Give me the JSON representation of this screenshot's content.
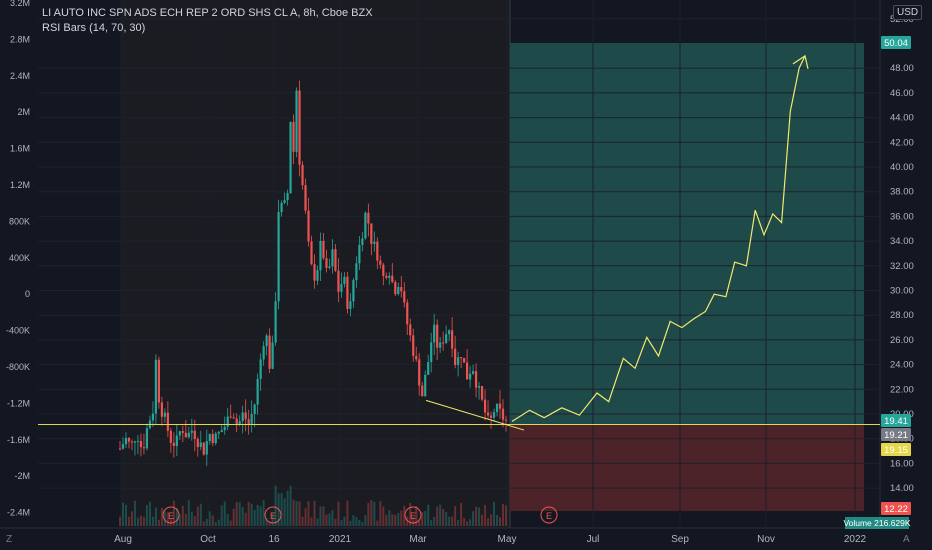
{
  "header": {
    "symbol_title": "LI AUTO INC SPN ADS ECH REP 2 ORD SHS CL A, 8h, Cboe BZX",
    "indicator": "RSI Bars (14, 70, 30)",
    "currency": "USD"
  },
  "bottom": {
    "left_icon": "Z",
    "right_icon": "A"
  },
  "colors": {
    "background": "#131722",
    "up": "#26a69a",
    "down": "#ef5350",
    "profit_zone": "#1f4a4a",
    "loss_zone": "#4b2328",
    "hline": "#e6d64a",
    "drawing": "#f0e96e"
  },
  "chart_data": {
    "type": "candlestick",
    "title": "LI AUTO INC SPN ADS ECH REP 2 ORD SHS CL A, 8h, Cboe BZX",
    "x_ticks": [
      "Aug",
      "Oct",
      "16",
      "2021",
      "Mar",
      "May",
      "Jul",
      "Sep",
      "Nov",
      "2022"
    ],
    "y_right_ticks": [
      "14.00",
      "16.00",
      "18.00",
      "20.00",
      "22.00",
      "24.00",
      "26.00",
      "28.00",
      "30.00",
      "32.00",
      "34.00",
      "36.00",
      "38.00",
      "40.00",
      "42.00",
      "44.00",
      "46.00",
      "48.00",
      "52.00"
    ],
    "y_right_range": [
      12.5,
      52.5
    ],
    "y_left_ticks": [
      "3.2M",
      "2.8M",
      "2.4M",
      "2M",
      "1.6M",
      "1.2M",
      "800K",
      "400K",
      "0",
      "-400K",
      "-800K",
      "-1.2M",
      "-1.6M",
      "-2M",
      "-2.4M"
    ],
    "price_labels": [
      {
        "text": "50.04",
        "value": 50.04,
        "color": "#26a69a"
      },
      {
        "text": "19.41",
        "value": 19.41,
        "color": "#26a69a"
      },
      {
        "text": "19.21",
        "value": 19.21,
        "color": "#787b86"
      },
      {
        "text": "19.15",
        "value": 19.15,
        "color": "#e6d64a"
      },
      {
        "text": "12.22",
        "value": 12.22,
        "color": "#ef5350"
      }
    ],
    "volume_label": "Volume 216.629K",
    "horizontal_line": 19.15,
    "earnings_markers": [
      "E",
      "E",
      "E",
      "E"
    ],
    "price_path": [
      [
        0,
        17.2
      ],
      [
        2,
        18.0
      ],
      [
        4,
        17.3
      ],
      [
        6,
        18.6
      ],
      [
        8,
        17.0
      ],
      [
        10,
        19.2
      ],
      [
        12,
        20.5
      ],
      [
        13,
        25.0
      ],
      [
        14,
        21.0
      ],
      [
        16,
        19.6
      ],
      [
        18,
        18.0
      ],
      [
        20,
        17.5
      ],
      [
        22,
        19.0
      ],
      [
        24,
        18.2
      ],
      [
        26,
        18.8
      ],
      [
        28,
        17.8
      ],
      [
        30,
        17.1
      ],
      [
        32,
        18.4
      ],
      [
        34,
        18.0
      ],
      [
        36,
        18.6
      ],
      [
        38,
        19.2
      ],
      [
        40,
        20.5
      ],
      [
        42,
        19.0
      ],
      [
        44,
        20.0
      ],
      [
        46,
        19.2
      ],
      [
        48,
        20.6
      ],
      [
        50,
        24.0
      ],
      [
        52,
        27.0
      ],
      [
        54,
        23.0
      ],
      [
        56,
        31.0
      ],
      [
        57,
        39.0
      ],
      [
        58,
        36.0
      ],
      [
        60,
        38.0
      ],
      [
        61,
        44.0
      ],
      [
        62,
        41.0
      ],
      [
        63,
        47.0
      ],
      [
        64,
        41.0
      ],
      [
        66,
        37.0
      ],
      [
        68,
        32.0
      ],
      [
        70,
        31.0
      ],
      [
        72,
        34.0
      ],
      [
        74,
        31.0
      ],
      [
        76,
        33.0
      ],
      [
        78,
        30.0
      ],
      [
        80,
        31.0
      ],
      [
        82,
        28.0
      ],
      [
        84,
        32.0
      ],
      [
        86,
        34.0
      ],
      [
        88,
        36.5
      ],
      [
        90,
        34.0
      ],
      [
        92,
        33.0
      ],
      [
        94,
        31.0
      ],
      [
        96,
        32.0
      ],
      [
        98,
        30.0
      ],
      [
        100,
        31.0
      ],
      [
        102,
        28.0
      ],
      [
        104,
        26.0
      ],
      [
        106,
        24.0
      ],
      [
        108,
        21.5
      ],
      [
        110,
        24.0
      ],
      [
        112,
        27.0
      ],
      [
        114,
        25.0
      ],
      [
        116,
        26.5
      ],
      [
        118,
        27.0
      ],
      [
        120,
        24.0
      ],
      [
        122,
        25.0
      ],
      [
        124,
        23.0
      ],
      [
        126,
        24.0
      ],
      [
        128,
        22.0
      ],
      [
        130,
        20.5
      ],
      [
        132,
        19.0
      ],
      [
        134,
        20.5
      ],
      [
        136,
        20.0
      ],
      [
        138,
        19.4
      ]
    ],
    "forecast_path": [
      [
        0,
        19.4
      ],
      [
        6,
        20.3
      ],
      [
        11,
        19.7
      ],
      [
        17,
        20.5
      ],
      [
        23,
        19.9
      ],
      [
        29,
        21.7
      ],
      [
        33,
        21.0
      ],
      [
        38,
        24.5
      ],
      [
        42,
        23.7
      ],
      [
        46,
        26.2
      ],
      [
        50,
        24.7
      ],
      [
        54,
        27.5
      ],
      [
        58,
        27.0
      ],
      [
        62,
        27.7
      ],
      [
        66,
        28.3
      ],
      [
        69,
        29.7
      ],
      [
        73,
        29.5
      ],
      [
        76,
        32.3
      ],
      [
        80,
        32.0
      ],
      [
        83,
        36.5
      ],
      [
        86,
        34.5
      ],
      [
        89,
        36.2
      ],
      [
        92,
        35.5
      ],
      [
        95,
        44.5
      ],
      [
        98,
        48.0
      ],
      [
        100,
        49.0
      ]
    ],
    "trend_line": {
      "from": 21.1,
      "to": 18.7
    }
  }
}
